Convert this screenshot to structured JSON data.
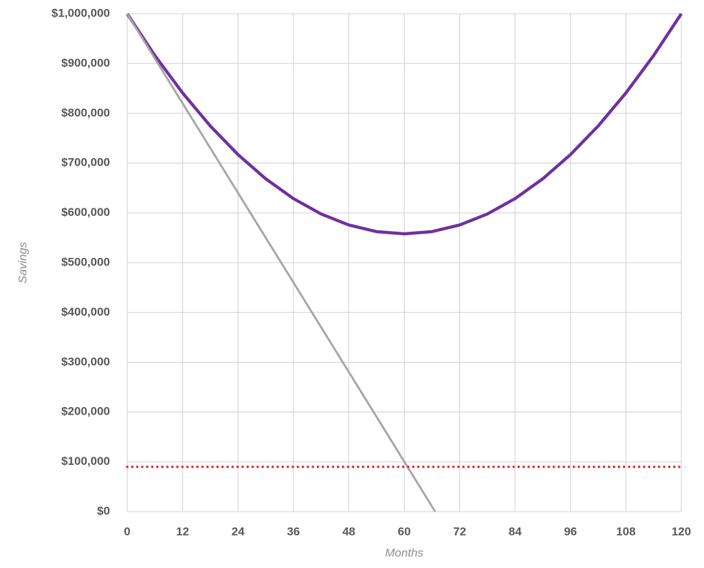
{
  "chart_data": {
    "type": "line",
    "x_label": "Months",
    "y_label": "Savings",
    "xlim": [
      0,
      120
    ],
    "xticks": [
      0,
      12,
      24,
      36,
      48,
      60,
      72,
      84,
      96,
      108,
      120
    ],
    "ylim": [
      0,
      1000000
    ],
    "yticks": [
      {
        "value": 0,
        "label": "$0"
      },
      {
        "value": 100000,
        "label": "$100,000"
      },
      {
        "value": 200000,
        "label": "$200,000"
      },
      {
        "value": 300000,
        "label": "$300,000"
      },
      {
        "value": 400000,
        "label": "$400,000"
      },
      {
        "value": 500000,
        "label": "$500,000"
      },
      {
        "value": 600000,
        "label": "$600,000"
      },
      {
        "value": 700000,
        "label": "$700,000"
      },
      {
        "value": 800000,
        "label": "$800,000"
      },
      {
        "value": 900000,
        "label": "$900,000"
      },
      {
        "value": 1000000,
        "label": "$1,000,000"
      }
    ],
    "grid": true,
    "series": [
      {
        "color": "#7030a0",
        "style": "solid",
        "x": [
          0,
          6,
          12,
          18,
          24,
          30,
          36,
          42,
          48,
          54,
          60,
          66,
          72,
          78,
          84,
          90,
          96,
          102,
          108,
          114,
          120
        ],
        "values": [
          1000000,
          916000,
          840900,
          774600,
          717100,
          668500,
          628700,
          597800,
          575700,
          562400,
          558000,
          562400,
          575700,
          597800,
          628700,
          668500,
          717100,
          774600,
          840900,
          916000,
          1000000
        ]
      },
      {
        "color": "#a6a6a6",
        "style": "solid",
        "x": [
          0,
          66.7
        ],
        "values": [
          1000000,
          0
        ]
      },
      {
        "color": "#e8202a",
        "style": "dotted",
        "x": [
          0,
          120
        ],
        "values": [
          90000,
          90000
        ]
      }
    ]
  }
}
